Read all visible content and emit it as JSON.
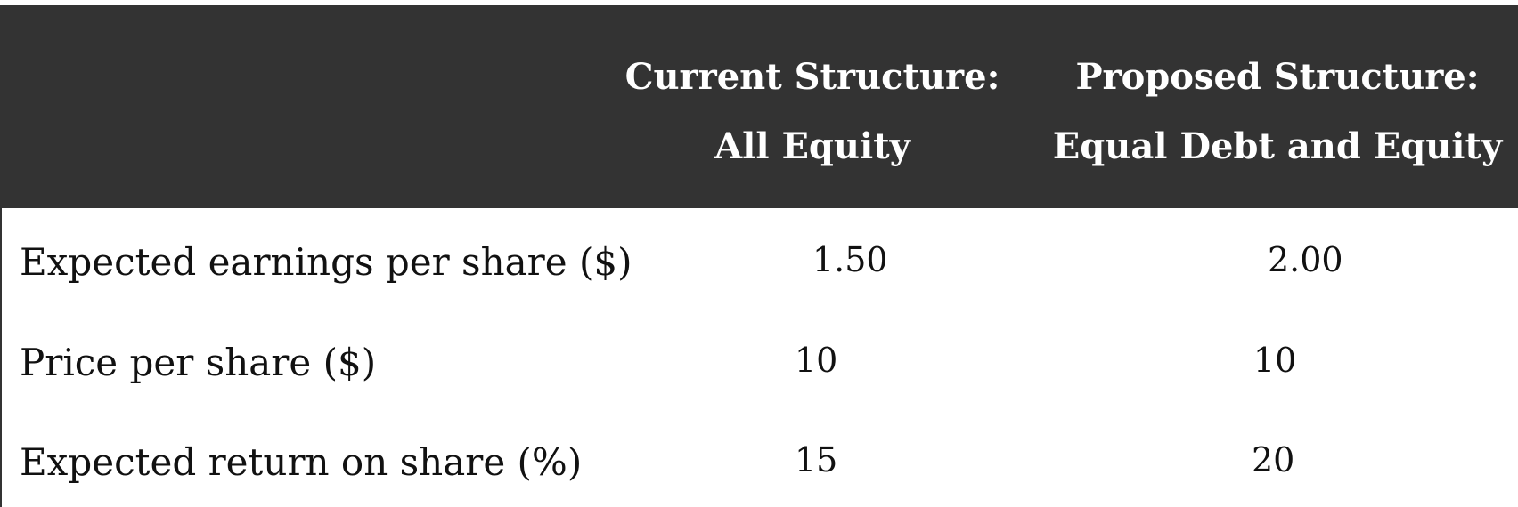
{
  "table": {
    "columns": [
      {
        "line1": "Current Structure:",
        "line2": "All Equity"
      },
      {
        "line1": "Proposed Structure:",
        "line2": "Equal Debt and Equity"
      }
    ],
    "rows": [
      {
        "label": "Expected earnings per share ($)",
        "current": "1.50",
        "proposed": "2.00"
      },
      {
        "label": "Price per share ($)",
        "current": "10",
        "proposed": "10"
      },
      {
        "label": "Expected return on share (%)",
        "current": "15",
        "proposed": "20"
      }
    ]
  }
}
